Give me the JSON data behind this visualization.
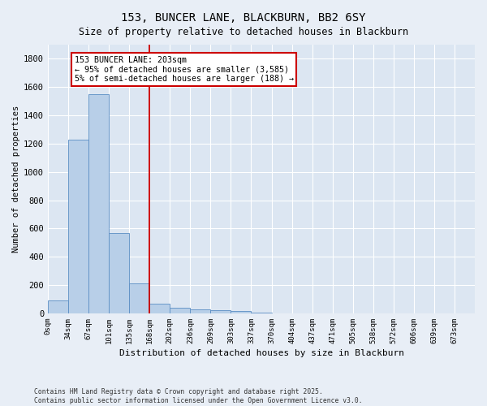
{
  "title_line1": "153, BUNCER LANE, BLACKBURN, BB2 6SY",
  "title_line2": "Size of property relative to detached houses in Blackburn",
  "xlabel": "Distribution of detached houses by size in Blackburn",
  "ylabel": "Number of detached properties",
  "bar_color": "#b8cfe8",
  "bar_edge_color": "#5b8ec4",
  "background_color": "#dce6f2",
  "fig_background_color": "#e8eef6",
  "grid_color": "#ffffff",
  "categories": [
    "0sqm",
    "34sqm",
    "67sqm",
    "101sqm",
    "135sqm",
    "168sqm",
    "202sqm",
    "236sqm",
    "269sqm",
    "303sqm",
    "337sqm",
    "370sqm",
    "404sqm",
    "437sqm",
    "471sqm",
    "505sqm",
    "538sqm",
    "572sqm",
    "606sqm",
    "639sqm",
    "673sqm"
  ],
  "values": [
    90,
    1230,
    1550,
    570,
    210,
    70,
    40,
    30,
    20,
    15,
    5,
    2,
    0,
    0,
    0,
    0,
    0,
    0,
    0,
    0,
    0
  ],
  "ylim": [
    0,
    1900
  ],
  "yticks": [
    0,
    200,
    400,
    600,
    800,
    1000,
    1200,
    1400,
    1600,
    1800
  ],
  "red_line_x": 5.0,
  "annotation_box_text": "153 BUNCER LANE: 203sqm\n← 95% of detached houses are smaller (3,585)\n5% of semi-detached houses are larger (188) →",
  "annotation_box_color": "#ffffff",
  "annotation_box_edge_color": "#cc0000",
  "footer_line1": "Contains HM Land Registry data © Crown copyright and database right 2025.",
  "footer_line2": "Contains public sector information licensed under the Open Government Licence v3.0."
}
